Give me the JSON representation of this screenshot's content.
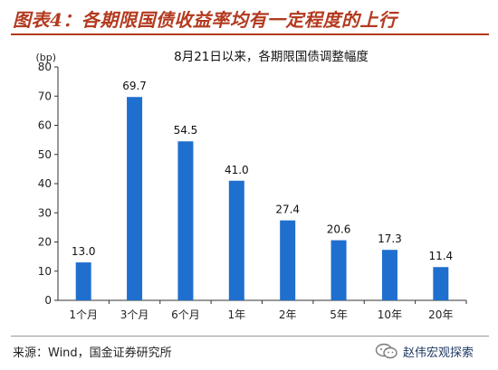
{
  "header": {
    "title": "图表4：各期限国债收益率均有一定程度的上行"
  },
  "footer": {
    "source": "来源：Wind，国金证券研究所",
    "watermark": "赵伟宏观探索"
  },
  "chart_data": {
    "type": "bar",
    "title": "8月21日以来，各期限国债调整幅度",
    "ylabel": "(bp)",
    "categories": [
      "1个月",
      "3个月",
      "6个月",
      "1年",
      "2年",
      "5年",
      "10年",
      "20年"
    ],
    "values": [
      13.0,
      69.7,
      54.5,
      41.0,
      27.4,
      20.6,
      17.3,
      11.4
    ],
    "value_labels": [
      "13.0",
      "69.7",
      "54.5",
      "41.0",
      "27.4",
      "20.6",
      "17.3",
      "11.4"
    ],
    "ylim": [
      0,
      80
    ],
    "yticks": [
      0,
      10,
      20,
      30,
      40,
      50,
      60,
      70,
      80
    ],
    "grid": false,
    "bar_color": "#1f6fce"
  }
}
